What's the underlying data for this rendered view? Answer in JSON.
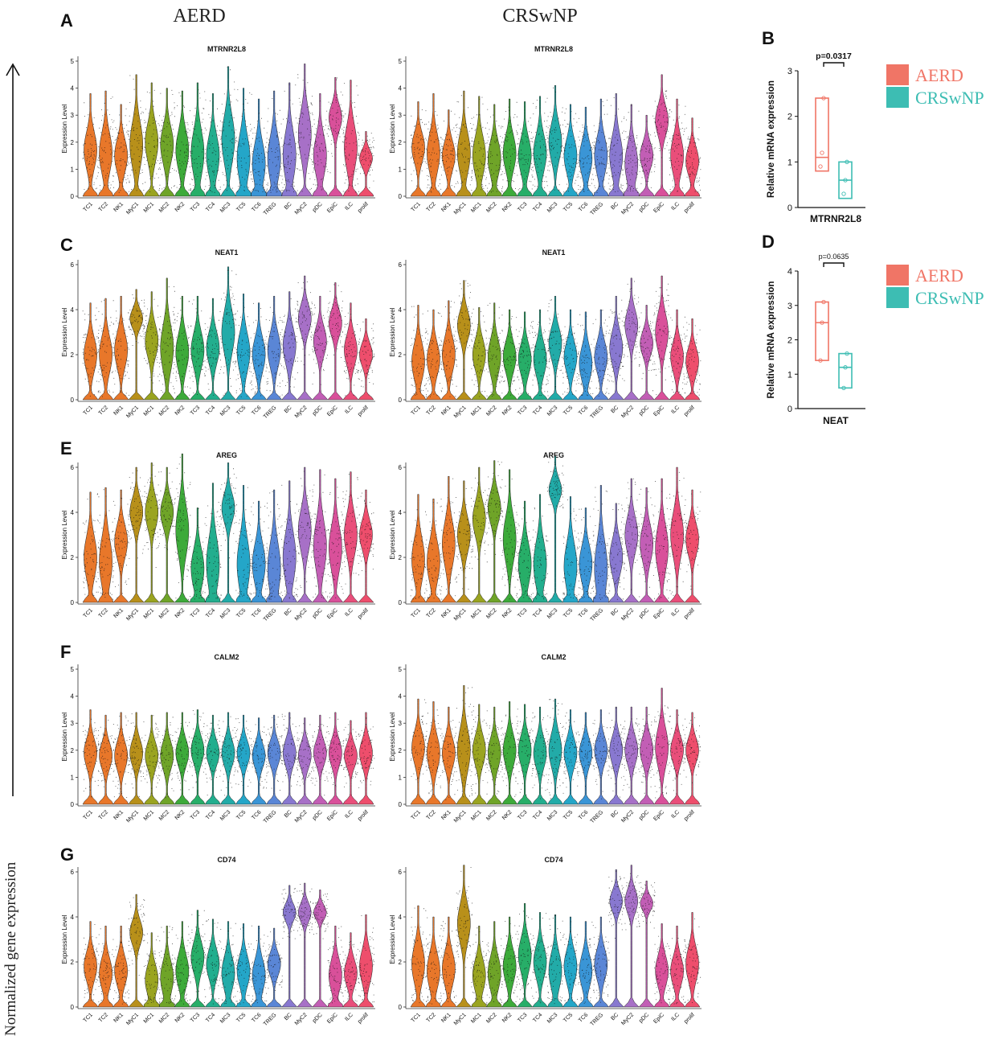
{
  "figure": {
    "column_headers": [
      "AERD",
      "CRSwNP"
    ],
    "y_axis_caption": "Normalized gene expression",
    "panel_letters": [
      "A",
      "B",
      "C",
      "D",
      "E",
      "F",
      "G"
    ]
  },
  "colors": {
    "AERD": "#F07566",
    "CRSwNP": "#3DBDB3",
    "celltype": [
      "#E8772A",
      "#E8772A",
      "#E8772A",
      "#B8901A",
      "#9AA420",
      "#6FA428",
      "#3DAA3A",
      "#27AE68",
      "#22AE8E",
      "#22ABA8",
      "#24A6C8",
      "#3A95D6",
      "#5A86D6",
      "#8878D0",
      "#A770C7",
      "#C25EB5",
      "#D9509A",
      "#E94E7A",
      "#EE4E6C"
    ]
  },
  "chart_data": [
    {
      "type": "violin",
      "panel": "A",
      "group": "AERD",
      "title": "MTRNR2L8",
      "ylabel": "Expression Level",
      "ylim": [
        0,
        5
      ],
      "yticks": [
        0,
        1,
        2,
        3,
        4,
        5
      ],
      "categories": [
        "TC1",
        "TC2",
        "NK1",
        "MyC1",
        "MC1",
        "MC2",
        "NK2",
        "TC3",
        "TC4",
        "MC3",
        "TC5",
        "TC6",
        "TREG",
        "BC",
        "MyC2",
        "pDC",
        "EpiC",
        "ILC",
        "prolif"
      ],
      "values": [
        1.7,
        1.6,
        1.5,
        1.9,
        2.0,
        1.9,
        1.7,
        1.6,
        1.5,
        2.1,
        1.4,
        1.2,
        1.4,
        1.5,
        2.3,
        1.5,
        2.9,
        1.8,
        1.4
      ],
      "max_values": [
        3.8,
        3.9,
        3.4,
        4.5,
        4.2,
        4.0,
        3.9,
        4.2,
        3.8,
        4.8,
        4.0,
        3.6,
        3.9,
        4.2,
        4.9,
        3.8,
        4.4,
        4.3,
        2.4
      ]
    },
    {
      "type": "violin",
      "panel": "A",
      "group": "CRSwNP",
      "title": "MTRNR2L8",
      "ylabel": "Expression Level",
      "ylim": [
        0,
        5
      ],
      "yticks": [
        0,
        1,
        2,
        3,
        4,
        5
      ],
      "categories": [
        "TC1",
        "TC2",
        "NK1",
        "MyC1",
        "MC1",
        "MC2",
        "NK2",
        "TC3",
        "TC4",
        "MC3",
        "TC5",
        "TC6",
        "TREG",
        "BC",
        "MyC2",
        "pDC",
        "EpiC",
        "ILC",
        "prolif"
      ],
      "values": [
        1.8,
        1.6,
        1.5,
        1.6,
        1.5,
        1.4,
        1.6,
        1.5,
        1.6,
        2.0,
        1.5,
        1.4,
        1.5,
        1.5,
        1.2,
        1.5,
        2.8,
        1.5,
        1.3
      ],
      "max_values": [
        3.5,
        3.8,
        3.2,
        3.9,
        3.7,
        3.4,
        3.6,
        3.5,
        3.7,
        4.1,
        3.4,
        3.3,
        3.6,
        3.8,
        3.4,
        3.0,
        4.5,
        3.6,
        2.9
      ]
    },
    {
      "type": "violin",
      "panel": "C",
      "group": "AERD",
      "title": "NEAT1",
      "ylabel": "Expression Level",
      "ylim": [
        0,
        6
      ],
      "yticks": [
        0,
        2,
        4,
        6
      ],
      "categories": [
        "TC1",
        "TC2",
        "NK1",
        "MyC1",
        "MC1",
        "MC2",
        "NK2",
        "TC3",
        "TC4",
        "MC3",
        "TC5",
        "TC6",
        "TREG",
        "BC",
        "MyC2",
        "pDC",
        "EpiC",
        "ILC",
        "prolif"
      ],
      "values": [
        2.0,
        2.0,
        2.2,
        3.6,
        2.6,
        2.3,
        2.1,
        2.2,
        2.3,
        3.0,
        2.1,
        2.0,
        2.2,
        2.4,
        3.6,
        2.6,
        3.4,
        2.2,
        2.0
      ],
      "max_values": [
        4.3,
        4.5,
        4.6,
        4.9,
        4.8,
        5.4,
        4.6,
        4.6,
        4.5,
        5.9,
        4.7,
        4.3,
        4.6,
        4.8,
        5.5,
        4.6,
        5.2,
        4.3,
        3.6
      ]
    },
    {
      "type": "violin",
      "panel": "C",
      "group": "CRSwNP",
      "title": "NEAT1",
      "ylabel": "Expression Level",
      "ylim": [
        0,
        6
      ],
      "yticks": [
        0,
        2,
        4,
        6
      ],
      "categories": [
        "TC1",
        "TC2",
        "NK1",
        "MyC1",
        "MC1",
        "MC2",
        "NK2",
        "TC3",
        "TC4",
        "MC3",
        "TC5",
        "TC6",
        "TREG",
        "BC",
        "MyC2",
        "pDC",
        "EpiC",
        "ILC",
        "prolif"
      ],
      "values": [
        1.7,
        1.8,
        2.0,
        3.3,
        2.0,
        1.9,
        1.9,
        1.8,
        1.8,
        2.5,
        1.9,
        1.6,
        1.9,
        2.3,
        3.3,
        2.5,
        3.0,
        1.9,
        1.7
      ],
      "max_values": [
        4.2,
        4.0,
        4.4,
        5.3,
        4.1,
        4.3,
        4.0,
        3.9,
        4.0,
        4.6,
        4.0,
        3.9,
        4.0,
        4.6,
        5.4,
        4.2,
        5.5,
        4.0,
        3.6
      ]
    },
    {
      "type": "violin",
      "panel": "E",
      "group": "AERD",
      "title": "AREG",
      "ylabel": "Expression Level",
      "ylim": [
        0,
        6
      ],
      "yticks": [
        0,
        2,
        4,
        6
      ],
      "categories": [
        "TC1",
        "TC2",
        "NK1",
        "MyC1",
        "MC1",
        "MC2",
        "NK2",
        "TC3",
        "TC4",
        "MC3",
        "TC5",
        "TC6",
        "TREG",
        "BC",
        "MyC2",
        "pDC",
        "EpiC",
        "ILC",
        "prolif"
      ],
      "values": [
        2.0,
        1.8,
        2.7,
        4.0,
        4.0,
        4.0,
        3.2,
        1.5,
        1.7,
        4.2,
        1.7,
        1.7,
        1.5,
        2.0,
        3.2,
        2.5,
        2.4,
        3.0,
        3.0
      ],
      "max_values": [
        4.9,
        5.1,
        5.0,
        6.0,
        6.2,
        6.0,
        6.6,
        4.2,
        5.3,
        6.2,
        5.2,
        4.5,
        5.0,
        5.4,
        6.0,
        5.9,
        5.5,
        5.8,
        5.0
      ]
    },
    {
      "type": "violin",
      "panel": "E",
      "group": "CRSwNP",
      "title": "AREG",
      "ylabel": "Expression Level",
      "ylim": [
        0,
        6
      ],
      "yticks": [
        0,
        2,
        4,
        6
      ],
      "categories": [
        "TC1",
        "TC2",
        "NK1",
        "MyC1",
        "MC1",
        "MC2",
        "NK2",
        "TC3",
        "TC4",
        "MC3",
        "TC5",
        "TC6",
        "TREG",
        "BC",
        "MyC2",
        "pDC",
        "EpiC",
        "ILC",
        "prolif"
      ],
      "values": [
        1.9,
        1.8,
        2.6,
        3.0,
        3.7,
        4.2,
        2.8,
        1.7,
        1.7,
        5.0,
        1.6,
        1.7,
        1.5,
        2.0,
        3.0,
        2.6,
        2.4,
        3.0,
        2.8
      ],
      "max_values": [
        4.8,
        4.6,
        5.6,
        5.4,
        6.0,
        6.3,
        5.9,
        4.5,
        4.8,
        6.5,
        4.7,
        4.2,
        5.2,
        4.4,
        5.5,
        5.1,
        5.5,
        6.0,
        5.0
      ]
    },
    {
      "type": "violin",
      "panel": "F",
      "group": "AERD",
      "title": "CALM2",
      "ylabel": "Expression Level",
      "ylim": [
        0,
        5
      ],
      "yticks": [
        0,
        1,
        2,
        3,
        4,
        5
      ],
      "categories": [
        "TC1",
        "TC2",
        "NK1",
        "MyC1",
        "MC1",
        "MC2",
        "NK2",
        "TC3",
        "TC4",
        "MC3",
        "TC5",
        "TC6",
        "TREG",
        "BC",
        "MyC2",
        "pDC",
        "EpiC",
        "ILC",
        "prolif"
      ],
      "values": [
        1.9,
        1.8,
        1.8,
        1.9,
        1.8,
        1.8,
        1.9,
        2.0,
        1.9,
        1.9,
        1.9,
        1.8,
        1.9,
        1.9,
        1.8,
        1.9,
        1.9,
        1.8,
        1.9
      ],
      "max_values": [
        3.5,
        3.3,
        3.4,
        3.4,
        3.3,
        3.4,
        3.4,
        3.5,
        3.3,
        3.4,
        3.3,
        3.2,
        3.3,
        3.4,
        3.2,
        3.3,
        3.4,
        3.1,
        3.4
      ]
    },
    {
      "type": "violin",
      "panel": "F",
      "group": "CRSwNP",
      "title": "CALM2",
      "ylabel": "Expression Level",
      "ylim": [
        0,
        5
      ],
      "yticks": [
        0,
        1,
        2,
        3,
        4,
        5
      ],
      "categories": [
        "TC1",
        "TC2",
        "NK1",
        "MyC1",
        "MC1",
        "MC2",
        "NK2",
        "TC3",
        "TC4",
        "MC3",
        "TC5",
        "TC6",
        "TREG",
        "BC",
        "MyC2",
        "pDC",
        "EpiC",
        "ILC",
        "prolif"
      ],
      "values": [
        2.1,
        1.9,
        1.9,
        2.0,
        2.0,
        1.9,
        2.0,
        2.0,
        1.9,
        2.0,
        1.9,
        1.9,
        2.0,
        2.0,
        2.0,
        2.0,
        2.1,
        2.0,
        2.0
      ],
      "max_values": [
        3.9,
        3.8,
        3.6,
        4.4,
        3.7,
        3.6,
        3.8,
        3.7,
        3.6,
        3.9,
        3.5,
        3.4,
        3.5,
        3.6,
        3.6,
        3.6,
        4.3,
        3.5,
        3.4
      ]
    },
    {
      "type": "violin",
      "panel": "G",
      "group": "AERD",
      "title": "CD74",
      "ylabel": "Expression Level",
      "ylim": [
        0,
        6
      ],
      "yticks": [
        0,
        2,
        4,
        6
      ],
      "categories": [
        "TC1",
        "TC2",
        "NK1",
        "MyC1",
        "MC1",
        "MC2",
        "NK2",
        "TC3",
        "TC4",
        "MC3",
        "TC5",
        "TC6",
        "TREG",
        "BC",
        "MyC2",
        "pDC",
        "EpiC",
        "ILC",
        "prolif"
      ],
      "values": [
        1.8,
        1.5,
        1.6,
        3.3,
        1.2,
        1.3,
        1.6,
        2.2,
        1.9,
        1.5,
        1.6,
        1.4,
        1.9,
        4.2,
        4.2,
        4.2,
        1.4,
        1.5,
        1.8
      ],
      "max_values": [
        3.8,
        3.6,
        3.6,
        5.0,
        3.3,
        3.6,
        3.8,
        4.3,
        3.9,
        3.8,
        3.7,
        3.6,
        3.5,
        5.4,
        5.5,
        5.2,
        3.6,
        3.3,
        4.1
      ]
    },
    {
      "type": "violin",
      "panel": "G",
      "group": "CRSwNP",
      "title": "CD74",
      "ylabel": "Expression Level",
      "ylim": [
        0,
        6
      ],
      "yticks": [
        0,
        2,
        4,
        6
      ],
      "categories": [
        "TC1",
        "TC2",
        "NK1",
        "MyC1",
        "MC1",
        "MC2",
        "NK2",
        "TC3",
        "TC4",
        "MC3",
        "TC5",
        "TC6",
        "TREG",
        "BC",
        "MyC2",
        "pDC",
        "EpiC",
        "ILC",
        "prolif"
      ],
      "values": [
        1.9,
        1.6,
        1.7,
        3.7,
        1.4,
        1.5,
        1.8,
        2.3,
        2.0,
        1.6,
        1.8,
        1.6,
        1.9,
        4.7,
        4.7,
        4.6,
        1.6,
        1.6,
        1.9
      ],
      "max_values": [
        4.5,
        4.0,
        4.0,
        6.3,
        3.6,
        3.8,
        4.0,
        4.6,
        4.2,
        4.1,
        4.0,
        3.8,
        4.0,
        6.1,
        6.3,
        5.6,
        3.7,
        3.6,
        4.2
      ]
    },
    {
      "type": "box",
      "panel": "B",
      "title": "",
      "xlabel": "MTRNR2L8",
      "ylabel": "Relative mRNA expression",
      "ylim": [
        0,
        3
      ],
      "yticks": [
        0,
        1,
        2,
        3
      ],
      "pvalue_label": "p=0.0317",
      "groups": [
        {
          "name": "AERD",
          "q1": 0.8,
          "median": 1.1,
          "q3": 2.4,
          "points": [
            0.9,
            1.2,
            2.4
          ]
        },
        {
          "name": "CRSwNP",
          "q1": 0.2,
          "median": 0.6,
          "q3": 1.0,
          "points": [
            0.3,
            0.6,
            1.0
          ]
        }
      ]
    },
    {
      "type": "box",
      "panel": "D",
      "title": "",
      "xlabel": "NEAT",
      "ylabel": "Relative mRNA expression",
      "ylim": [
        0,
        4
      ],
      "yticks": [
        0,
        1,
        2,
        3,
        4
      ],
      "pvalue_label": "p=0.0635",
      "groups": [
        {
          "name": "AERD",
          "q1": 1.4,
          "median": 2.5,
          "q3": 3.1,
          "points": [
            1.4,
            2.5,
            3.1
          ]
        },
        {
          "name": "CRSwNP",
          "q1": 0.6,
          "median": 1.2,
          "q3": 1.6,
          "points": [
            0.6,
            1.2,
            1.6
          ]
        }
      ]
    }
  ],
  "legend": {
    "entries": [
      {
        "label": "AERD",
        "color": "#F07566"
      },
      {
        "label": "CRSwNP",
        "color": "#3DBDB3"
      }
    ]
  }
}
